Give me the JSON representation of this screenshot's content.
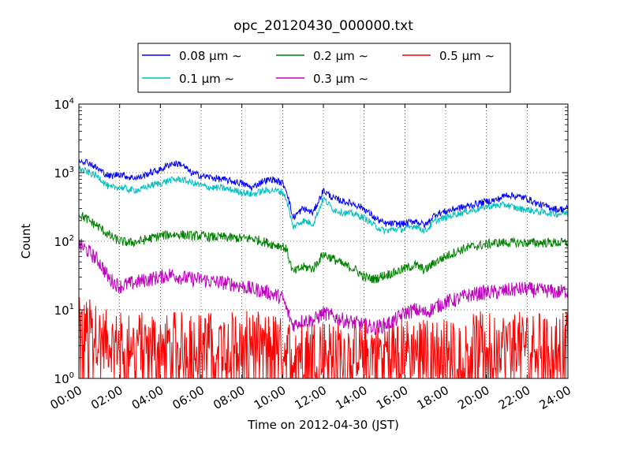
{
  "chart_data": {
    "type": "line",
    "title": "opc_20120430_000000.txt",
    "xlabel": "Time on 2012-04-30 (JST)",
    "ylabel": "Count",
    "xlim_hours": [
      0,
      24
    ],
    "x_tick_labels": [
      "00:00",
      "02:00",
      "04:00",
      "06:00",
      "08:00",
      "10:00",
      "12:00",
      "14:00",
      "16:00",
      "18:00",
      "20:00",
      "22:00",
      "24:00"
    ],
    "yscale": "log",
    "ylim": [
      1,
      10000
    ],
    "y_ticks": [
      {
        "value": 1,
        "base": "10",
        "exp": "0"
      },
      {
        "value": 10,
        "base": "10",
        "exp": "1"
      },
      {
        "value": 100,
        "base": "10",
        "exp": "2"
      },
      {
        "value": 1000,
        "base": "10",
        "exp": "3"
      },
      {
        "value": 10000,
        "base": "10",
        "exp": "4"
      }
    ],
    "grid": true,
    "legend_placement": "top-center",
    "series": [
      {
        "name": "0.08 μm ∼",
        "color": "#0000ff",
        "x_hours": [
          0,
          0.5,
          1,
          1.5,
          2,
          2.5,
          3,
          3.5,
          4,
          4.5,
          5,
          5.5,
          6,
          6.5,
          7,
          7.5,
          8,
          8.5,
          9,
          9.5,
          10,
          10.2,
          10.5,
          11,
          11.5,
          12,
          12.5,
          13,
          13.5,
          14,
          14.5,
          15,
          15.5,
          16,
          16.5,
          17,
          17.5,
          18,
          18.5,
          19,
          19.5,
          20,
          20.5,
          21,
          21.5,
          22,
          22.5,
          23,
          23.5,
          24
        ],
        "values": [
          1550,
          1400,
          1100,
          880,
          960,
          850,
          850,
          1000,
          1100,
          1350,
          1350,
          1000,
          900,
          850,
          800,
          750,
          700,
          600,
          750,
          800,
          700,
          550,
          220,
          300,
          260,
          550,
          420,
          380,
          350,
          300,
          220,
          180,
          180,
          180,
          200,
          170,
          250,
          270,
          300,
          320,
          350,
          380,
          400,
          480,
          450,
          420,
          350,
          320,
          290,
          300
        ]
      },
      {
        "name": "0.1 μm ∼",
        "color": "#00bfbf",
        "x_hours": [
          0,
          0.5,
          1,
          1.5,
          2,
          2.5,
          3,
          3.5,
          4,
          4.5,
          5,
          5.5,
          6,
          6.5,
          7,
          7.5,
          8,
          8.5,
          9,
          9.5,
          10,
          10.2,
          10.5,
          11,
          11.5,
          12,
          12.5,
          13,
          13.5,
          14,
          14.5,
          15,
          15.5,
          16,
          16.5,
          17,
          17.5,
          18,
          18.5,
          19,
          19.5,
          20,
          20.5,
          21,
          21.5,
          22,
          22.5,
          23,
          23.5,
          24
        ],
        "values": [
          1150,
          1000,
          850,
          600,
          620,
          560,
          560,
          650,
          700,
          780,
          800,
          720,
          650,
          600,
          600,
          560,
          520,
          480,
          540,
          560,
          520,
          400,
          160,
          200,
          180,
          420,
          290,
          260,
          250,
          220,
          170,
          140,
          150,
          150,
          170,
          140,
          200,
          220,
          250,
          270,
          290,
          320,
          330,
          340,
          300,
          290,
          270,
          260,
          250,
          260
        ]
      },
      {
        "name": "0.2 μm ∼",
        "color": "#008000",
        "x_hours": [
          0,
          0.5,
          1,
          1.5,
          2,
          2.5,
          3,
          3.5,
          4,
          4.5,
          5,
          5.5,
          6,
          6.5,
          7,
          7.5,
          8,
          8.5,
          9,
          9.5,
          10,
          10.2,
          10.5,
          11,
          11.5,
          12,
          12.5,
          13,
          13.5,
          14,
          14.5,
          15,
          15.5,
          16,
          16.5,
          17,
          17.5,
          18,
          18.5,
          19,
          19.5,
          20,
          20.5,
          21,
          21.5,
          22,
          22.5,
          23,
          23.5,
          24
        ],
        "values": [
          250,
          200,
          160,
          120,
          100,
          95,
          100,
          110,
          120,
          125,
          125,
          120,
          120,
          115,
          115,
          112,
          110,
          110,
          100,
          90,
          85,
          75,
          35,
          42,
          40,
          65,
          55,
          45,
          40,
          30,
          28,
          32,
          35,
          40,
          45,
          38,
          50,
          60,
          70,
          80,
          85,
          90,
          95,
          95,
          95,
          95,
          95,
          95,
          95,
          95
        ]
      },
      {
        "name": "0.3 μm ∼",
        "color": "#bf00bf",
        "x_hours": [
          0,
          0.5,
          1,
          1.5,
          2,
          2.5,
          3,
          3.5,
          4,
          4.5,
          5,
          5.5,
          6,
          6.5,
          7,
          7.5,
          8,
          8.5,
          9,
          9.5,
          10,
          10.2,
          10.5,
          11,
          11.5,
          12,
          12.5,
          13,
          13.5,
          14,
          14.5,
          15,
          15.5,
          16,
          16.5,
          17,
          17.5,
          18,
          18.5,
          19,
          19.5,
          20,
          20.5,
          21,
          21.5,
          22,
          22.5,
          23,
          23.5,
          24
        ],
        "values": [
          90,
          70,
          50,
          28,
          22,
          24,
          26,
          28,
          30,
          33,
          30,
          28,
          28,
          26,
          25,
          24,
          22,
          20,
          19,
          17,
          15,
          10,
          6,
          7,
          7,
          9,
          8,
          7,
          6.5,
          6,
          5.5,
          6,
          7,
          9,
          10,
          9,
          11,
          13,
          14,
          16,
          17,
          18,
          18,
          19,
          20,
          20,
          19,
          19,
          18,
          19
        ]
      },
      {
        "name": "0.5 μm ∼",
        "color": "#ff0000",
        "x_hours": [
          0,
          0.5,
          1,
          1.5,
          2,
          2.5,
          3,
          3.5,
          4,
          4.5,
          5,
          5.5,
          6,
          6.5,
          7,
          7.5,
          8,
          8.5,
          9,
          9.5,
          10,
          10.2,
          10.5,
          11,
          11.5,
          12,
          12.5,
          13,
          13.5,
          14,
          14.5,
          15,
          15.5,
          16,
          16.5,
          17,
          17.5,
          18,
          18.5,
          19,
          19.5,
          20,
          20.5,
          21,
          21.5,
          22,
          22.5,
          23,
          23.5,
          24
        ],
        "values": [
          4,
          4,
          3,
          2.5,
          2.5,
          2.5,
          2.5,
          2.5,
          2.5,
          2.5,
          2.5,
          2.5,
          2.5,
          2.5,
          2.5,
          2.5,
          2.5,
          2.5,
          2.5,
          2.5,
          2,
          2,
          2,
          2,
          2,
          2,
          2,
          2,
          2,
          2,
          2,
          2,
          2,
          2,
          2,
          2,
          2,
          2,
          2,
          2,
          2.5,
          2.5,
          2.5,
          2.5,
          2.5,
          2.5,
          2.5,
          2.5,
          2.5,
          2.5
        ]
      }
    ]
  }
}
